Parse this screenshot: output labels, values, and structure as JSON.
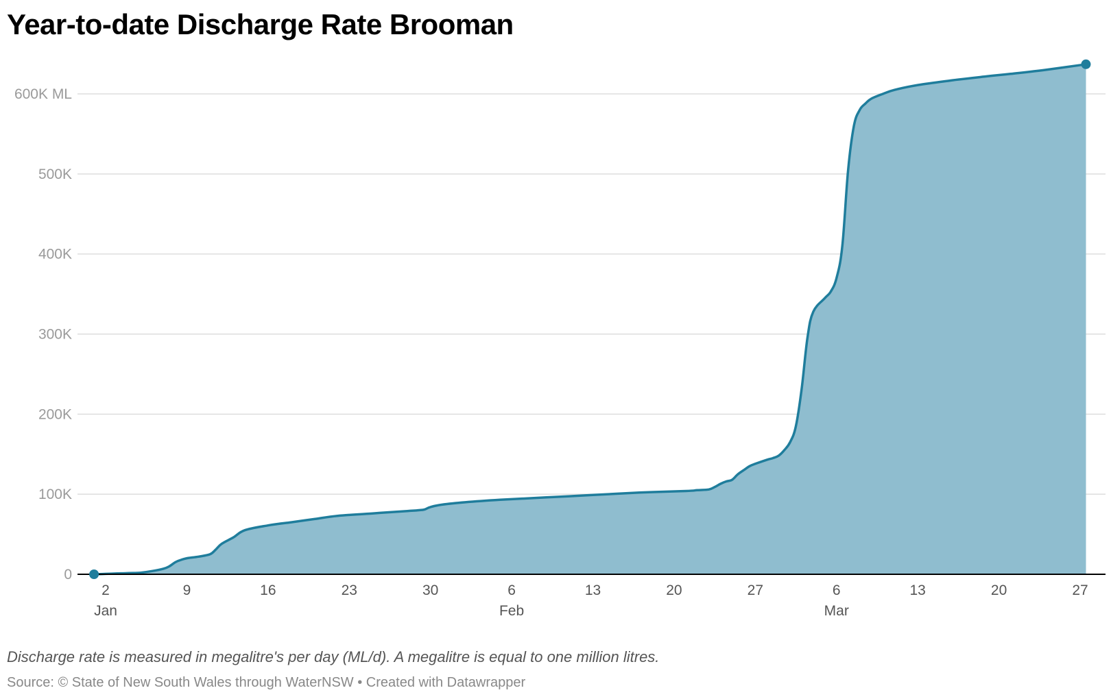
{
  "title": "Year-to-date Discharge Rate Brooman",
  "note": "Discharge rate is measured in megalitre's per day (ML/d). A megalitre is equal to one million litres.",
  "source": "Source: © State of New South Wales through WaterNSW • Created with Datawrapper",
  "colors": {
    "line": "#1f7d9c",
    "area": "#8fbdcf",
    "grid": "#dddddd",
    "axis": "#000000"
  },
  "chart_data": {
    "type": "area",
    "title": "Year-to-date Discharge Rate Brooman",
    "ylabel": "",
    "xlabel": "",
    "ylim": [
      0,
      640000
    ],
    "grid": true,
    "y_ticks": [
      {
        "value": 0,
        "label": "0"
      },
      {
        "value": 100000,
        "label": "100K"
      },
      {
        "value": 200000,
        "label": "200K"
      },
      {
        "value": 300000,
        "label": "300K"
      },
      {
        "value": 400000,
        "label": "400K"
      },
      {
        "value": 500000,
        "label": "500K"
      },
      {
        "value": 600000,
        "label": "600K ML"
      }
    ],
    "x_ticks": [
      {
        "day": 2,
        "label": "2",
        "month": "Jan"
      },
      {
        "day": 9,
        "label": "9"
      },
      {
        "day": 16,
        "label": "16"
      },
      {
        "day": 23,
        "label": "23"
      },
      {
        "day": 30,
        "label": "30"
      },
      {
        "day": 37,
        "label": "6",
        "month": "Feb"
      },
      {
        "day": 44,
        "label": "13"
      },
      {
        "day": 51,
        "label": "20"
      },
      {
        "day": 58,
        "label": "27"
      },
      {
        "day": 65,
        "label": "6",
        "month": "Mar"
      },
      {
        "day": 72,
        "label": "13"
      },
      {
        "day": 79,
        "label": "20"
      },
      {
        "day": 86,
        "label": "27"
      }
    ],
    "series": [
      {
        "x": [
          1,
          2,
          3,
          4,
          5,
          6,
          7,
          7.5,
          8,
          8.5,
          9,
          10,
          11,
          11.5,
          12,
          13,
          14,
          16,
          18,
          20,
          22,
          25,
          28,
          29,
          29.5,
          30,
          31,
          33,
          36,
          40,
          44,
          48,
          52,
          53,
          54,
          54.5,
          55,
          55.5,
          56,
          56.5,
          57,
          57.5,
          58,
          59,
          59.5,
          60,
          60.5,
          61,
          61.5,
          62,
          62.5,
          63,
          64,
          64.5,
          65,
          65.5,
          66,
          66.5,
          67,
          67.5,
          68,
          69,
          70,
          72,
          75,
          78,
          80,
          83,
          86.5
        ],
        "values": [
          0,
          500,
          1000,
          1500,
          2000,
          4000,
          7000,
          10000,
          15000,
          18000,
          20000,
          22000,
          25000,
          31000,
          38000,
          46000,
          55000,
          61000,
          65000,
          69000,
          73000,
          76000,
          79000,
          80000,
          81000,
          84000,
          87000,
          90000,
          93000,
          96000,
          99000,
          102000,
          104000,
          105000,
          106000,
          109000,
          113000,
          116000,
          118000,
          125000,
          130000,
          135000,
          138000,
          143000,
          145000,
          148000,
          155000,
          165000,
          185000,
          232000,
          296000,
          328000,
          345000,
          353000,
          370000,
          410000,
          505000,
          560000,
          580000,
          588000,
          594000,
          600000,
          605000,
          611000,
          617000,
          622000,
          625000,
          630000,
          637000
        ]
      }
    ]
  }
}
